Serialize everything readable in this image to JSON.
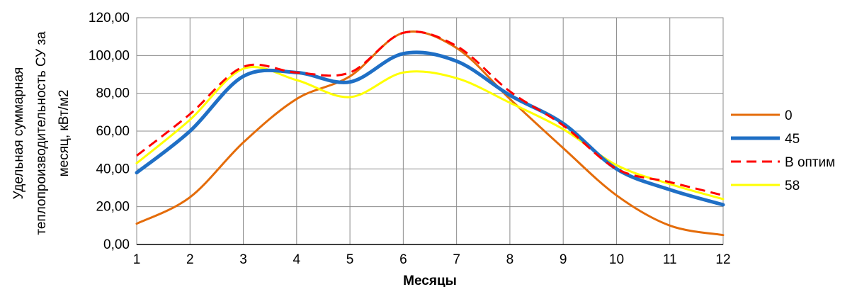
{
  "chart_data": {
    "type": "line",
    "xlabel": "Месяцы",
    "ylabel_lines": [
      "Удельная суммарная",
      "теплопроизводительность СУ за",
      "месяц, кВт/м2"
    ],
    "x": [
      1,
      2,
      3,
      4,
      5,
      6,
      7,
      8,
      9,
      10,
      11,
      12
    ],
    "xtick_labels": [
      "1",
      "2",
      "3",
      "4",
      "5",
      "6",
      "7",
      "8",
      "9",
      "10",
      "11",
      "12"
    ],
    "ylim": [
      0,
      120
    ],
    "yticks": [
      0,
      20,
      40,
      60,
      80,
      100,
      120
    ],
    "ytick_labels": [
      "0,00",
      "20,00",
      "40,00",
      "60,00",
      "80,00",
      "100,00",
      "120,00"
    ],
    "grid": true,
    "legend_position": "right",
    "series": [
      {
        "name": "0",
        "color": "#E46C0A",
        "style": "solid",
        "values": [
          11,
          25,
          54,
          77,
          89,
          112,
          104,
          77,
          51,
          26,
          10,
          5
        ]
      },
      {
        "name": "45",
        "color": "#1F6FC5",
        "style": "solid-thick",
        "values": [
          38,
          60,
          89,
          91,
          86,
          101,
          97,
          79,
          64,
          40,
          29,
          21
        ]
      },
      {
        "name": "В оптим",
        "color": "#FF0000",
        "style": "dashed",
        "values": [
          47,
          69,
          94,
          91,
          91,
          112,
          105,
          81,
          63,
          40,
          33,
          26
        ]
      },
      {
        "name": "58",
        "color": "#FFFF00",
        "style": "solid",
        "values": [
          43,
          66,
          93,
          87,
          78,
          91,
          88,
          75,
          61,
          42,
          32,
          24
        ]
      }
    ]
  }
}
